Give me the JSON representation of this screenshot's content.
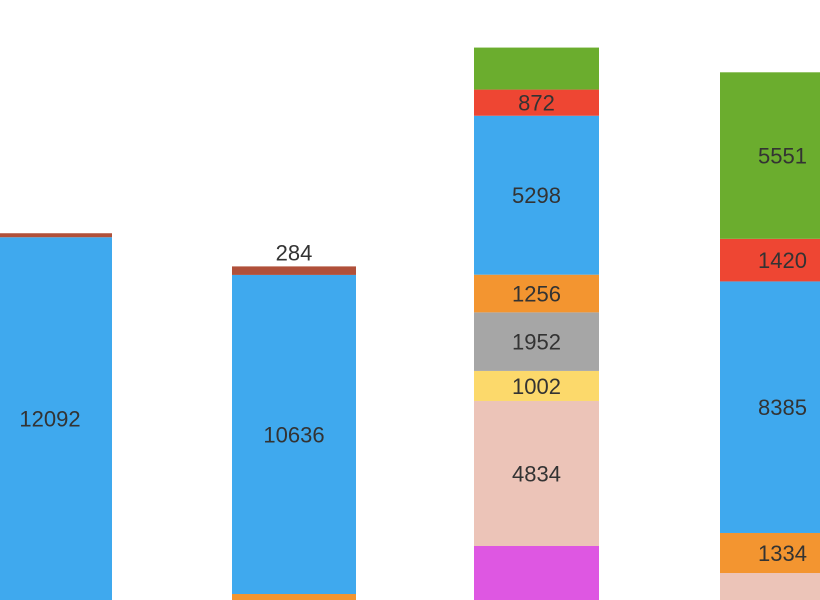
{
  "chart_data": {
    "type": "bar",
    "stacked": true,
    "title": "",
    "xlabel": "",
    "ylabel": "",
    "note": "cropped view of a stacked column chart; four columns partially visible",
    "columns": [
      {
        "segments": [
          {
            "value": 12092,
            "color": "#3fa9ee",
            "label": "12092"
          },
          {
            "value": 45,
            "color": "#b0503a",
            "label": ""
          }
        ]
      },
      {
        "segments": [
          {
            "value": 200,
            "color": "#f39530",
            "label": ""
          },
          {
            "value": 10636,
            "color": "#3fa9ee",
            "label": "10636"
          },
          {
            "value": 284,
            "color": "#b0503a",
            "label": "284"
          }
        ]
      },
      {
        "segments": [
          {
            "value": 1800,
            "color": "#de57e2",
            "label": ""
          },
          {
            "value": 4834,
            "color": "#ecc4b8",
            "label": "4834"
          },
          {
            "value": 1002,
            "color": "#fcd96b",
            "label": "1002"
          },
          {
            "value": 1952,
            "color": "#a6a6a6",
            "label": "1952"
          },
          {
            "value": 1256,
            "color": "#f39530",
            "label": "1256"
          },
          {
            "value": 5298,
            "color": "#3fa9ee",
            "label": "5298"
          },
          {
            "value": 872,
            "color": "#ee4633",
            "label": "872"
          },
          {
            "value": 1400,
            "color": "#6bad2e",
            "label": ""
          }
        ]
      },
      {
        "segments": [
          {
            "value": 900,
            "color": "#ecc4b8",
            "label": ""
          },
          {
            "value": 1334,
            "color": "#f39530",
            "label": "1334"
          },
          {
            "value": 8385,
            "color": "#3fa9ee",
            "label": "8385"
          },
          {
            "value": 1420,
            "color": "#ee4633",
            "label": "1420"
          },
          {
            "value": 5551,
            "color": "#6bad2e",
            "label": "5551"
          }
        ]
      }
    ]
  }
}
